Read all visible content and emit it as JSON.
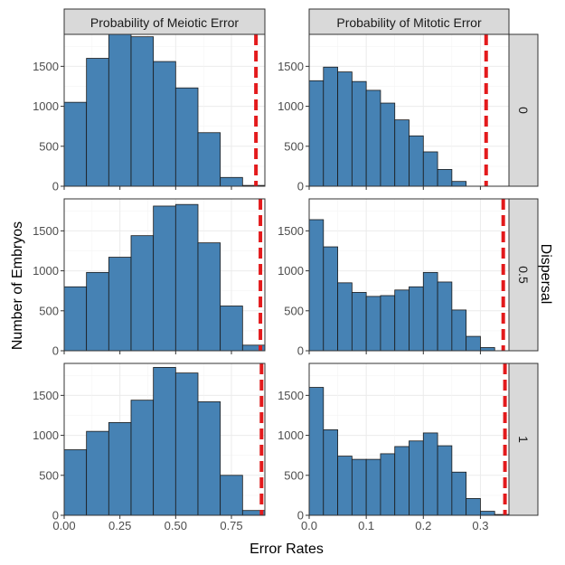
{
  "chart_data": {
    "type": "bar",
    "xlabel": "Error Rates",
    "ylabel": "Number of Embryos",
    "row_facet_label": "Dispersal",
    "column_facets": [
      "Probability of Meiotic Error",
      "Probability of Mitotic Error"
    ],
    "row_facets": [
      "0",
      "0.5",
      "1"
    ],
    "ylim": [
      0,
      1900
    ],
    "y_ticks": [
      0,
      500,
      1000,
      1500
    ],
    "grid": true,
    "bar_fill": "#4682B4",
    "bar_stroke": "#1a1a1a",
    "threshold_color": "#E31A1C",
    "strip_fill": "#D9D9D9",
    "columns": [
      {
        "xlim": [
          0,
          0.9
        ],
        "x_ticks": [
          "0.00",
          "0.25",
          "0.50",
          "0.75"
        ],
        "x_tick_values": [
          0,
          0.25,
          0.5,
          0.75
        ],
        "bin_width": 0.1,
        "bin_starts": [
          0,
          0.1,
          0.2,
          0.3,
          0.4,
          0.5,
          0.6,
          0.7,
          0.8
        ]
      },
      {
        "xlim": [
          0,
          0.35
        ],
        "x_ticks": [
          "0.0",
          "0.1",
          "0.2",
          "0.3"
        ],
        "x_tick_values": [
          0,
          0.1,
          0.2,
          0.3
        ],
        "bin_width": 0.025,
        "bin_starts": [
          0,
          0.025,
          0.05,
          0.075,
          0.1,
          0.125,
          0.15,
          0.175,
          0.2,
          0.225,
          0.25,
          0.275,
          0.3,
          0.325
        ]
      }
    ],
    "panels": [
      {
        "row": "0",
        "column": "Probability of Meiotic Error",
        "values": [
          1050,
          1600,
          1950,
          1870,
          1560,
          1230,
          670,
          110,
          10
        ],
        "threshold": 0.86
      },
      {
        "row": "0",
        "column": "Probability of Mitotic Error",
        "values": [
          1320,
          1490,
          1430,
          1310,
          1200,
          1040,
          830,
          630,
          430,
          210,
          60,
          0,
          0,
          0
        ],
        "threshold": 0.31
      },
      {
        "row": "0.5",
        "column": "Probability of Meiotic Error",
        "values": [
          800,
          980,
          1170,
          1440,
          1810,
          1830,
          1350,
          560,
          70
        ],
        "threshold": 0.88
      },
      {
        "row": "0.5",
        "column": "Probability of Mitotic Error",
        "values": [
          1640,
          1300,
          850,
          730,
          680,
          690,
          760,
          800,
          980,
          860,
          510,
          180,
          40,
          0
        ],
        "threshold": 0.34
      },
      {
        "row": "1",
        "column": "Probability of Meiotic Error",
        "values": [
          820,
          1050,
          1160,
          1440,
          1850,
          1780,
          1420,
          500,
          60
        ],
        "threshold": 0.885
      },
      {
        "row": "1",
        "column": "Probability of Mitotic Error",
        "values": [
          1600,
          1070,
          740,
          700,
          700,
          770,
          860,
          930,
          1030,
          870,
          540,
          210,
          50,
          10
        ],
        "threshold": 0.343
      }
    ]
  }
}
